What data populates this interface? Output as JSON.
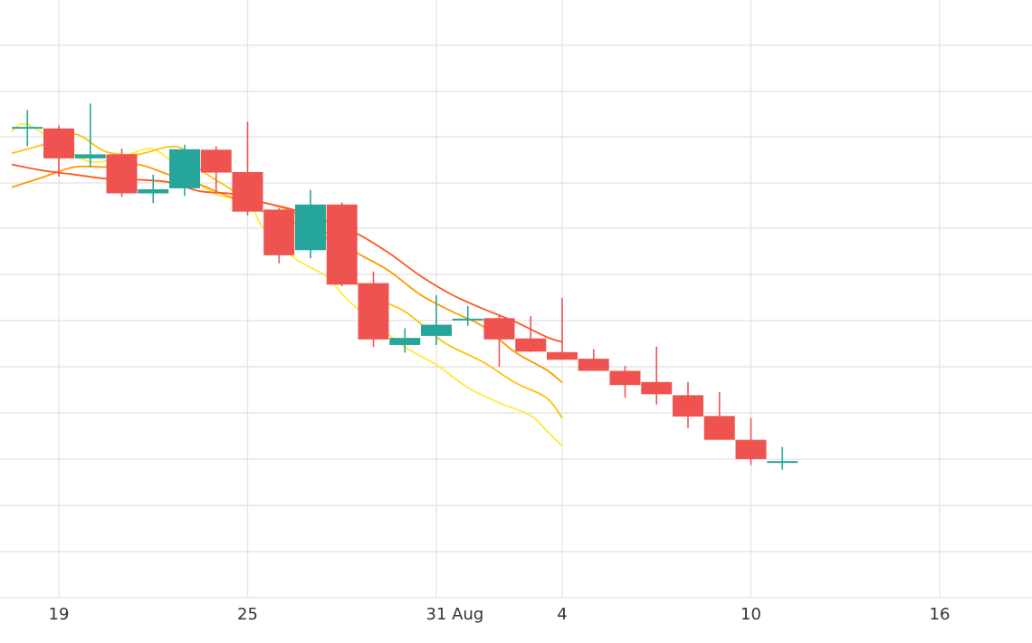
{
  "chart_data": {
    "type": "candlestick",
    "title": "",
    "xlabel": "",
    "ylabel": "",
    "y_axis_labels_visible": false,
    "grid": true,
    "legend": "none",
    "x_ticks": [
      {
        "date": "2021-07-19",
        "label": "19"
      },
      {
        "date": "2021-07-25",
        "label": "25"
      },
      {
        "date": "2021-07-31",
        "label": "31"
      },
      {
        "date": "2021-08-01",
        "label": "Aug"
      },
      {
        "date": "2021-08-04",
        "label": "4"
      },
      {
        "date": "2021-08-10",
        "label": "10"
      },
      {
        "date": "2021-08-16",
        "label": "16"
      }
    ],
    "xlim": [
      "2021-07-17",
      "2021-08-20"
    ],
    "ylim": [
      0,
      100
    ],
    "y_gridlines": [
      0,
      8,
      16,
      24,
      32,
      40,
      48,
      56,
      64,
      72,
      80,
      88,
      96,
      104
    ],
    "colors": {
      "up": "#26a69a",
      "down": "#ef5350",
      "ma_fast": "#ffeb3b",
      "ma_mid": "#ffc107",
      "ma_slow": "#ff9800",
      "ma_slower": "#ff5722"
    },
    "candles": [
      {
        "date": "2021-07-18",
        "open": 83.9,
        "high": 87.2,
        "low": 80.1,
        "close": 83.9
      },
      {
        "date": "2021-07-19",
        "open": 83.6,
        "high": 84.2,
        "low": 74.1,
        "close": 77.7
      },
      {
        "date": "2021-07-20",
        "open": 77.7,
        "high": 88.5,
        "low": 76.0,
        "close": 78.5
      },
      {
        "date": "2021-07-21",
        "open": 78.5,
        "high": 79.6,
        "low": 70.1,
        "close": 70.8
      },
      {
        "date": "2021-07-22",
        "open": 70.8,
        "high": 74.5,
        "low": 68.9,
        "close": 71.6
      },
      {
        "date": "2021-07-23",
        "open": 71.8,
        "high": 80.4,
        "low": 70.3,
        "close": 79.5
      },
      {
        "date": "2021-07-24",
        "open": 79.4,
        "high": 80.1,
        "low": 71.2,
        "close": 74.9
      },
      {
        "date": "2021-07-25",
        "open": 75.0,
        "high": 84.9,
        "low": 66.5,
        "close": 67.2
      },
      {
        "date": "2021-07-26",
        "open": 67.6,
        "high": 67.9,
        "low": 57.0,
        "close": 58.6
      },
      {
        "date": "2021-07-27",
        "open": 59.6,
        "high": 71.5,
        "low": 58.0,
        "close": 68.6
      },
      {
        "date": "2021-07-28",
        "open": 68.6,
        "high": 69.0,
        "low": 52.5,
        "close": 52.8
      },
      {
        "date": "2021-07-29",
        "open": 53.1,
        "high": 55.4,
        "low": 40.5,
        "close": 42.0
      },
      {
        "date": "2021-07-30",
        "open": 40.9,
        "high": 44.2,
        "low": 39.4,
        "close": 42.3
      },
      {
        "date": "2021-07-31",
        "open": 42.7,
        "high": 50.7,
        "low": 40.9,
        "close": 44.9
      },
      {
        "date": "2021-08-01",
        "open": 46.1,
        "high": 48.6,
        "low": 44.7,
        "close": 46.1
      },
      {
        "date": "2021-08-02",
        "open": 46.2,
        "high": 46.9,
        "low": 36.6,
        "close": 42.0
      },
      {
        "date": "2021-08-03",
        "open": 42.2,
        "high": 46.6,
        "low": 39.5,
        "close": 39.6
      },
      {
        "date": "2021-08-04",
        "open": 39.5,
        "high": 50.2,
        "low": 38.9,
        "close": 38.0
      },
      {
        "date": "2021-08-05",
        "open": 38.2,
        "high": 40.1,
        "low": 36.0,
        "close": 35.8
      },
      {
        "date": "2021-08-06",
        "open": 35.8,
        "high": 36.8,
        "low": 30.5,
        "close": 33.0
      },
      {
        "date": "2021-08-07",
        "open": 33.6,
        "high": 40.6,
        "low": 29.2,
        "close": 31.2
      },
      {
        "date": "2021-08-08",
        "open": 31.0,
        "high": 33.6,
        "low": 24.5,
        "close": 26.8
      },
      {
        "date": "2021-08-09",
        "open": 26.9,
        "high": 31.6,
        "low": 22.7,
        "close": 22.2
      },
      {
        "date": "2021-08-10",
        "open": 22.2,
        "high": 26.5,
        "low": 17.2,
        "close": 18.4
      },
      {
        "date": "2021-08-11",
        "open": 18.0,
        "high": 20.8,
        "low": 16.3,
        "close": 18.0
      }
    ],
    "series": [
      {
        "key": "ma_fast",
        "values": [
          [
            -0.5,
            83.0
          ],
          [
            -0.2,
            84.5
          ],
          [
            0.2,
            83.8
          ],
          [
            1.0,
            80.5
          ],
          [
            2.0,
            77.0
          ],
          [
            3.0,
            78.0
          ],
          [
            4.0,
            79.5
          ],
          [
            5.0,
            74.8
          ],
          [
            6.0,
            70.6
          ],
          [
            7.0,
            69.0
          ],
          [
            7.5,
            64.0
          ],
          [
            8.5,
            58.0
          ],
          [
            9.5,
            54.5
          ],
          [
            10.0,
            51.0
          ],
          [
            10.5,
            48.0
          ],
          [
            11.0,
            45.5
          ],
          [
            12.0,
            40.5
          ],
          [
            13.0,
            37.0
          ],
          [
            14.0,
            32.5
          ],
          [
            15.0,
            29.5
          ],
          [
            16.0,
            27.0
          ],
          [
            16.5,
            24.0
          ],
          [
            17.0,
            21.0
          ]
        ]
      },
      {
        "key": "ma_mid",
        "values": [
          [
            -0.5,
            78.7
          ],
          [
            0.5,
            80.4
          ],
          [
            1.5,
            82.5
          ],
          [
            2.5,
            79.0
          ],
          [
            3.5,
            78.5
          ],
          [
            4.5,
            80.0
          ],
          [
            5.0,
            79.3
          ],
          [
            5.5,
            75.5
          ],
          [
            6.5,
            71.5
          ],
          [
            7.5,
            67.2
          ],
          [
            8.5,
            65.0
          ],
          [
            9.5,
            62.0
          ],
          [
            10.0,
            56.0
          ],
          [
            11.0,
            50.5
          ],
          [
            12.0,
            47.5
          ],
          [
            13.0,
            42.5
          ],
          [
            13.5,
            40.5
          ],
          [
            14.5,
            37.5
          ],
          [
            15.5,
            33.5
          ],
          [
            16.5,
            30.5
          ],
          [
            17.0,
            26.5
          ]
        ]
      },
      {
        "key": "ma_slow",
        "values": [
          [
            -0.5,
            72.0
          ],
          [
            0.5,
            74.0
          ],
          [
            1.5,
            76.0
          ],
          [
            2.5,
            76.0
          ],
          [
            3.5,
            76.5
          ],
          [
            4.5,
            74.5
          ],
          [
            5.5,
            72.5
          ],
          [
            6.5,
            70.0
          ],
          [
            7.5,
            69.0
          ],
          [
            8.5,
            67.0
          ],
          [
            9.5,
            63.0
          ],
          [
            10.5,
            59.0
          ],
          [
            11.5,
            55.5
          ],
          [
            12.5,
            50.8
          ],
          [
            13.5,
            47.5
          ],
          [
            14.5,
            44.5
          ],
          [
            15.5,
            39.5
          ],
          [
            16.5,
            36.0
          ],
          [
            17.0,
            33.5
          ]
        ]
      },
      {
        "key": "ma_slower",
        "values": [
          [
            -0.5,
            76.5
          ],
          [
            0.5,
            75.3
          ],
          [
            1.5,
            74.5
          ],
          [
            2.5,
            73.7
          ],
          [
            3.5,
            73.5
          ],
          [
            4.5,
            73.0
          ],
          [
            5.5,
            71.2
          ],
          [
            6.5,
            70.7
          ],
          [
            7.5,
            69.0
          ],
          [
            8.5,
            67.5
          ],
          [
            9.5,
            65.3
          ],
          [
            10.5,
            62.8
          ],
          [
            11.5,
            59.0
          ],
          [
            12.5,
            54.5
          ],
          [
            13.5,
            50.8
          ],
          [
            14.5,
            48.0
          ],
          [
            15.5,
            45.5
          ],
          [
            16.5,
            42.5
          ],
          [
            17.0,
            41.5
          ]
        ]
      }
    ]
  }
}
